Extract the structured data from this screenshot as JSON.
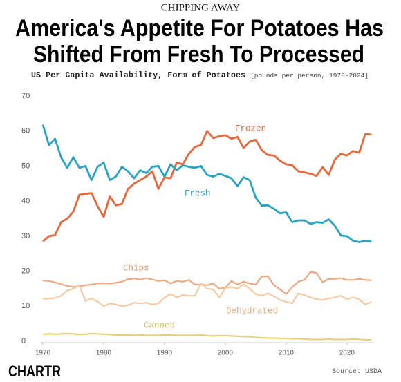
{
  "chart_data": {
    "type": "line",
    "kicker": "CHIPPING AWAY",
    "title": [
      "America's Appetite For Potatoes Has",
      "Shifted From Fresh To Processed"
    ],
    "subtitle": "US Per Capita Availability, Form of Potatoes",
    "unit_note": "[pounds per person, 1970-2024]",
    "source": "Source: USDA",
    "logo": "CHARTR",
    "x": [
      1970,
      1971,
      1972,
      1973,
      1974,
      1975,
      1976,
      1977,
      1978,
      1979,
      1980,
      1981,
      1982,
      1983,
      1984,
      1985,
      1986,
      1987,
      1988,
      1989,
      1990,
      1991,
      1992,
      1993,
      1994,
      1995,
      1996,
      1997,
      1998,
      1999,
      2000,
      2001,
      2002,
      2003,
      2004,
      2005,
      2006,
      2007,
      2008,
      2009,
      2010,
      2011,
      2012,
      2013,
      2014,
      2015,
      2016,
      2017,
      2018,
      2019,
      2020,
      2021,
      2022,
      2023,
      2024
    ],
    "xlim": [
      1970,
      2024
    ],
    "xticks": [
      1970,
      1980,
      1990,
      2000,
      2010,
      2020
    ],
    "ylim": [
      0,
      70
    ],
    "yticks": [
      0,
      10,
      20,
      30,
      40,
      50,
      60,
      70
    ],
    "grid": false,
    "series": [
      {
        "name": "Frozen",
        "color": "#e8673a",
        "values": [
          28.5,
          30,
          30.3,
          34,
          35,
          37,
          41.8,
          42,
          42.3,
          38.5,
          35.5,
          41.3,
          38.8,
          39.2,
          43.5,
          45,
          46,
          47,
          48.5,
          43.5,
          46.8,
          46.5,
          51,
          50.5,
          53.5,
          55.5,
          56,
          60,
          58,
          58.5,
          58.8,
          57.8,
          58.3,
          55.2,
          57,
          57.5,
          54.5,
          53.2,
          53,
          51.5,
          50.5,
          50.2,
          48.5,
          48.2,
          47.8,
          47.2,
          49.7,
          47.5,
          51.8,
          53.5,
          53,
          54.3,
          53.8,
          59.1,
          59
        ]
      },
      {
        "name": "Fresh",
        "color": "#2aa3c0",
        "values": [
          61.8,
          56,
          57.8,
          52.5,
          49.5,
          52.5,
          49.5,
          50,
          46,
          49.8,
          51,
          46,
          47,
          49.8,
          48.5,
          46.5,
          48.8,
          48,
          49.8,
          50,
          47,
          50.5,
          48.8,
          50.2,
          49.8,
          49.5,
          50,
          47.5,
          47,
          47.8,
          47.2,
          46.5,
          44.3,
          46.8,
          46,
          41,
          38.7,
          38.8,
          37.8,
          36.5,
          36.8,
          34,
          34.5,
          34.5,
          33.5,
          34,
          33.8,
          34.8,
          33,
          30.2,
          30,
          28.7,
          28.3,
          28.7,
          28.5
        ]
      },
      {
        "name": "Chips",
        "color": "#eea982",
        "values": [
          17.3,
          17.2,
          16.8,
          16.3,
          15.8,
          15.5,
          15.7,
          16,
          16.2,
          16.5,
          16.6,
          16.5,
          16.7,
          17,
          17.7,
          17.9,
          17.6,
          18,
          17.6,
          17.2,
          17.4,
          16.5,
          17.2,
          17,
          17.5,
          16.2,
          16.2,
          16,
          16.5,
          15,
          15.3,
          17.2,
          16.2,
          17,
          16.5,
          16.2,
          18.5,
          18.5,
          16,
          14.8,
          13.5,
          15.5,
          17,
          17.5,
          19.8,
          19.5,
          16.8,
          17.8,
          17.8,
          18,
          17.5,
          17.5,
          17.8,
          17.5,
          17.4
        ]
      },
      {
        "name": "Dehydrated",
        "color": "#f5cba6",
        "values": [
          12,
          12.2,
          12.3,
          13,
          14.5,
          15,
          16,
          11.5,
          12.2,
          11.3,
          10,
          10.8,
          10.5,
          10,
          10.3,
          11,
          10.8,
          11,
          10.5,
          10.8,
          12.5,
          13.5,
          12.5,
          13.2,
          13,
          13,
          16.5,
          15,
          14.8,
          12.5,
          15.2,
          15.5,
          15,
          16.3,
          15,
          13.5,
          13,
          13.7,
          12.8,
          11.8,
          11.2,
          10.8,
          13.7,
          13.2,
          12.5,
          12,
          11.8,
          12.2,
          12.5,
          13,
          12,
          12.5,
          12,
          10.5,
          11.2
        ]
      },
      {
        "name": "Canned",
        "color": "#e6d27e",
        "values": [
          2,
          2.1,
          2,
          2.1,
          2.2,
          2.1,
          1.9,
          2,
          2.2,
          2.1,
          2,
          1.9,
          1.8,
          1.8,
          1.8,
          1.7,
          1.8,
          1.7,
          1.7,
          1.7,
          1.8,
          1.8,
          1.7,
          1.7,
          1.7,
          1.7,
          1.8,
          1.6,
          1.5,
          1.6,
          1.6,
          1.5,
          1.4,
          1.3,
          1.3,
          1.1,
          1,
          0.9,
          0.9,
          0.8,
          0.8,
          0.7,
          0.7,
          0.6,
          0.5,
          0.5,
          0.5,
          0.6,
          0.5,
          0.5,
          0.5,
          0.6,
          0.5,
          0.4,
          0.4
        ]
      }
    ]
  }
}
